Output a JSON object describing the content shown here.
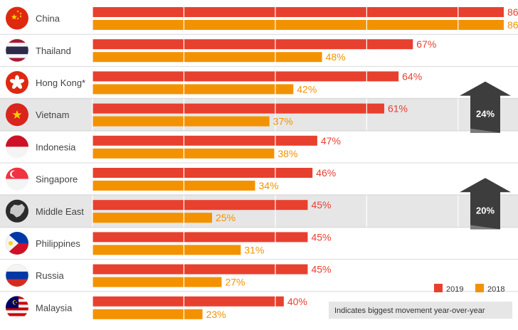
{
  "chart_data": {
    "type": "bar",
    "orientation": "horizontal",
    "categories": [
      "China",
      "Thailand",
      "Hong Kong*",
      "Vietnam",
      "Indonesia",
      "Singapore",
      "Middle East",
      "Philippines",
      "Russia",
      "Malaysia"
    ],
    "series": [
      {
        "name": "2019",
        "color": "#e8402f",
        "values": [
          86,
          67,
          64,
          61,
          47,
          46,
          45,
          45,
          45,
          40
        ]
      },
      {
        "name": "2018",
        "color": "#f39200",
        "values": [
          86,
          48,
          42,
          37,
          38,
          34,
          25,
          31,
          27,
          23
        ]
      }
    ],
    "value_suffix": "%",
    "xlim": [
      0,
      86
    ],
    "grid": true,
    "legend_position": "bottom-right",
    "highlight_rows": [
      3,
      6
    ],
    "annotations": [
      {
        "row": 3,
        "text": "24%",
        "icon": "up-arrow-icon"
      },
      {
        "row": 6,
        "text": "20%",
        "icon": "up-arrow-icon"
      }
    ],
    "highlight_note": "Indicates biggest movement year-over-year",
    "flags": [
      "china-flag-icon",
      "thailand-flag-icon",
      "hong-kong-flag-icon",
      "vietnam-flag-icon",
      "indonesia-flag-icon",
      "singapore-flag-icon",
      "middle-east-map-icon",
      "philippines-flag-icon",
      "russia-flag-icon",
      "malaysia-flag-icon"
    ]
  }
}
